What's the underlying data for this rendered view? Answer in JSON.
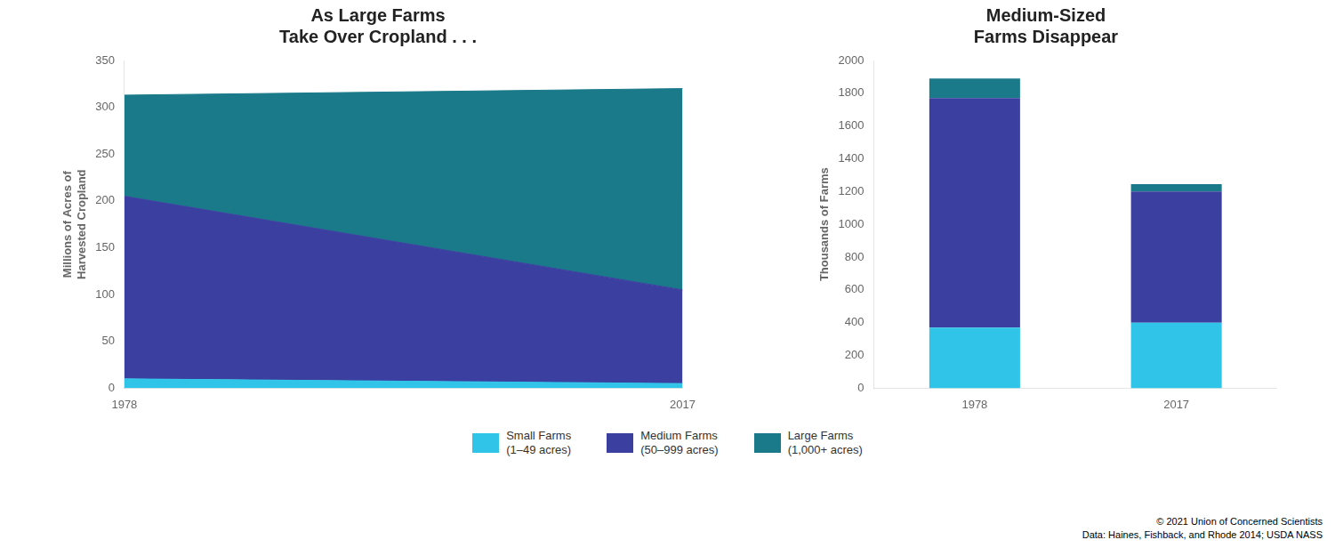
{
  "chart_data": [
    {
      "type": "area",
      "title": "As Large Farms\nTake Over Cropland . . .",
      "y_label": "Millions of Acres of\nHarvested Cropland",
      "x": [
        1978,
        2017
      ],
      "xlim": [
        1978,
        2017
      ],
      "xticks": [
        1978,
        2017
      ],
      "ylim": [
        0,
        350
      ],
      "yticks": [
        0,
        50,
        100,
        150,
        200,
        250,
        300,
        350
      ],
      "stacked": true,
      "grid": false,
      "legend": "bottom",
      "series": [
        {
          "name": "Small Farms\n(1–49 acres)",
          "color": "#30C5E8",
          "values": [
            10,
            5
          ]
        },
        {
          "name": "Medium Farms\n(50–999 acres)",
          "color": "#3B3FA0",
          "values": [
            195,
            100
          ]
        },
        {
          "name": "Large Farms\n(1,000+ acres)",
          "color": "#1A7A8A",
          "values": [
            108,
            215
          ]
        }
      ]
    },
    {
      "type": "bar",
      "title": "Medium-Sized\nFarms Disappear",
      "y_label": "Thousands of Farms",
      "categories": [
        "1978",
        "2017"
      ],
      "ylim": [
        0,
        2000
      ],
      "yticks": [
        0,
        200,
        400,
        600,
        800,
        1000,
        1200,
        1400,
        1600,
        1800,
        2000
      ],
      "stacked": true,
      "grid": false,
      "legend": "bottom",
      "series": [
        {
          "name": "Small Farms\n(1–49 acres)",
          "color": "#30C5E8",
          "values": [
            370,
            400
          ]
        },
        {
          "name": "Medium Farms\n(50–999 acres)",
          "color": "#3B3FA0",
          "values": [
            1400,
            800
          ]
        },
        {
          "name": "Large Farms\n(1,000+ acres)",
          "color": "#1A7A8A",
          "values": [
            120,
            45
          ]
        }
      ],
      "annotations": [
        "© 2021 Union of Concerned Scientists",
        "Data: Haines, Fishback, and Rhode 2014; USDA NASS"
      ]
    }
  ]
}
